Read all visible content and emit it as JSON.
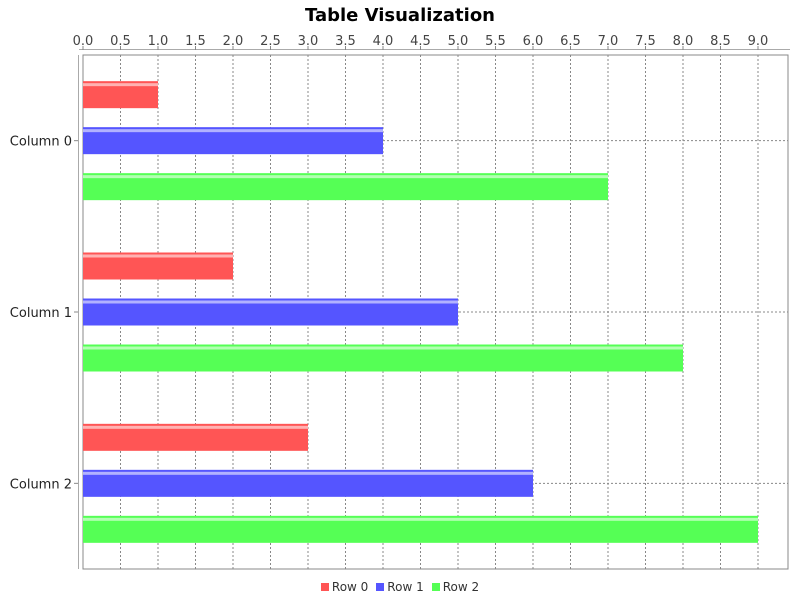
{
  "chart_data": {
    "type": "bar",
    "orientation": "horizontal",
    "title": "Table Visualization",
    "categories": [
      "Column 0",
      "Column 1",
      "Column 2"
    ],
    "series": [
      {
        "name": "Row 0",
        "values": [
          1,
          2,
          3
        ],
        "color": "#ff5555"
      },
      {
        "name": "Row 1",
        "values": [
          4,
          5,
          6
        ],
        "color": "#5555ff"
      },
      {
        "name": "Row 2",
        "values": [
          7,
          8,
          9
        ],
        "color": "#55ff55"
      }
    ],
    "xlim": [
      0,
      9.4
    ],
    "x_ticks": [
      "0.0",
      "0.5",
      "1.0",
      "1.5",
      "2.0",
      "2.5",
      "3.0",
      "3.5",
      "4.0",
      "4.5",
      "5.0",
      "5.5",
      "6.0",
      "6.5",
      "7.0",
      "7.5",
      "8.0",
      "8.5",
      "9.0"
    ],
    "x_axis_position": "top",
    "grid": true,
    "legend_position": "bottom"
  }
}
